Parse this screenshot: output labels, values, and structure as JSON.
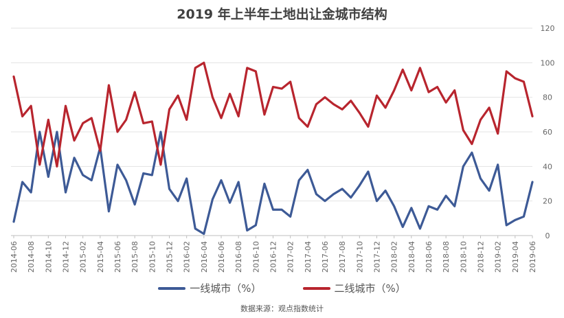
{
  "chart_data": {
    "type": "line",
    "title": "2019 年上半年土地出让金城市结构",
    "source": "数据来源：观点指数统计",
    "ylim": [
      0,
      120
    ],
    "yticks": [
      0,
      20,
      40,
      60,
      80,
      100,
      120
    ],
    "grid": true,
    "legend_position": "bottom",
    "x_tick_labels": [
      "2014-06",
      "2014-08",
      "2014-10",
      "2014-12",
      "2015-02",
      "2015-04",
      "2015-06",
      "2015-08",
      "2015-10",
      "2015-12",
      "2016-02",
      "2016-04",
      "2016-06",
      "2016-08",
      "2016-10",
      "2016-12",
      "2017-02",
      "2017-04",
      "2017-06",
      "2017-08",
      "2017-10",
      "2017-12",
      "2018-02",
      "2018-04",
      "2018-06",
      "2018-08",
      "2018-10",
      "2018-12",
      "2019-02",
      "2019-04",
      "2019-06"
    ],
    "x": [
      "2014-06",
      "2014-07",
      "2014-08",
      "2014-09",
      "2014-10",
      "2014-11",
      "2014-12",
      "2015-01",
      "2015-02",
      "2015-03",
      "2015-04",
      "2015-05",
      "2015-06",
      "2015-07",
      "2015-08",
      "2015-09",
      "2015-10",
      "2015-11",
      "2015-12",
      "2016-01",
      "2016-02",
      "2016-03",
      "2016-04",
      "2016-05",
      "2016-06",
      "2016-07",
      "2016-08",
      "2016-09",
      "2016-10",
      "2016-11",
      "2016-12",
      "2017-01",
      "2017-02",
      "2017-03",
      "2017-04",
      "2017-05",
      "2017-06",
      "2017-07",
      "2017-08",
      "2017-09",
      "2017-10",
      "2017-11",
      "2017-12",
      "2018-01",
      "2018-02",
      "2018-03",
      "2018-04",
      "2018-05",
      "2018-06",
      "2018-07",
      "2018-08",
      "2018-09",
      "2018-10",
      "2018-11",
      "2018-12",
      "2019-01",
      "2019-02",
      "2019-03",
      "2019-04",
      "2019-05",
      "2019-06"
    ],
    "series": [
      {
        "name": "一线城市（%）",
        "color": "#3d5a96",
        "values": [
          8,
          31,
          25,
          60,
          34,
          60,
          25,
          45,
          35,
          32,
          51,
          14,
          41,
          32,
          18,
          36,
          35,
          60,
          27,
          20,
          33,
          4,
          1,
          21,
          32,
          19,
          31,
          3,
          6,
          30,
          15,
          15,
          11,
          32,
          38,
          24,
          20,
          24,
          27,
          22,
          29,
          37,
          20,
          26,
          17,
          5,
          16,
          4,
          17,
          15,
          23,
          17,
          40,
          48,
          33,
          26,
          41,
          6,
          9,
          11,
          31
        ]
      },
      {
        "name": "二线城市（%）",
        "color": "#b8252e",
        "values": [
          92,
          69,
          75,
          41,
          67,
          40,
          75,
          55,
          65,
          68,
          49,
          87,
          60,
          67,
          83,
          65,
          66,
          41,
          73,
          81,
          67,
          97,
          100,
          80,
          68,
          82,
          69,
          97,
          95,
          70,
          86,
          85,
          89,
          68,
          63,
          76,
          80,
          76,
          73,
          78,
          71,
          63,
          81,
          74,
          84,
          96,
          84,
          97,
          83,
          86,
          77,
          84,
          61,
          53,
          67,
          74,
          59,
          95,
          91,
          89,
          69
        ]
      }
    ]
  }
}
